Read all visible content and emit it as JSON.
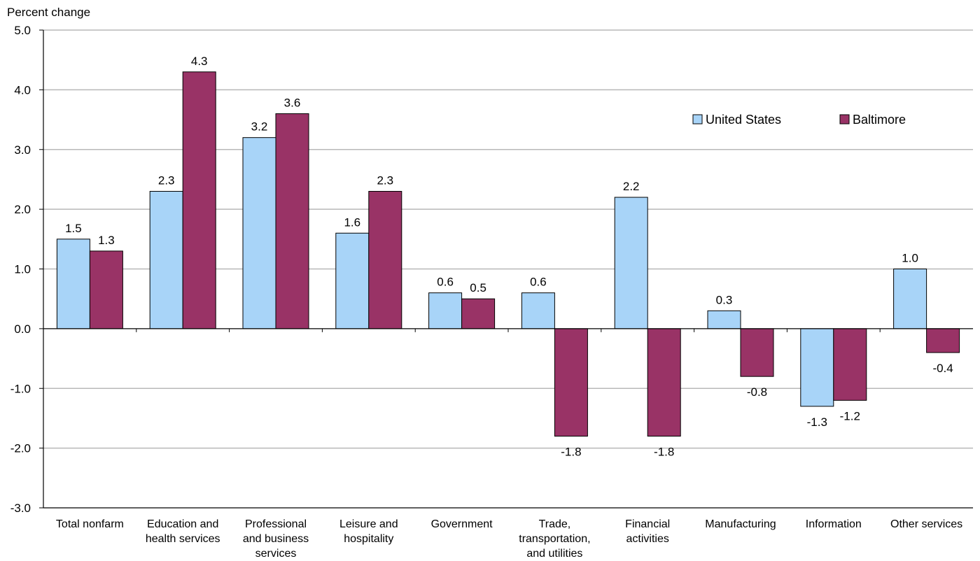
{
  "chart_data": {
    "type": "bar",
    "ylabel": "Percent change",
    "ylim": [
      -3.0,
      5.0
    ],
    "yticks": [
      "5.0",
      "4.0",
      "3.0",
      "2.0",
      "1.0",
      "0.0",
      "-1.0",
      "-2.0",
      "-3.0"
    ],
    "grid": true,
    "legend_position": "top-right",
    "categories": [
      [
        "Total nonfarm"
      ],
      [
        "Education and",
        "health services"
      ],
      [
        "Professional",
        "and business",
        "services"
      ],
      [
        "Leisure and",
        "hospitality"
      ],
      [
        "Government"
      ],
      [
        "Trade,",
        "transportation,",
        "and utilities"
      ],
      [
        "Financial",
        "activities"
      ],
      [
        "Manufacturing"
      ],
      [
        "Information"
      ],
      [
        "Other services"
      ]
    ],
    "series": [
      {
        "name": "United States",
        "color": "#a8d4f8",
        "values": [
          1.5,
          2.3,
          3.2,
          1.6,
          0.6,
          0.6,
          2.2,
          0.3,
          -1.3,
          1.0
        ],
        "labels": [
          "1.5",
          "2.3",
          "3.2",
          "1.6",
          "0.6",
          "0.6",
          "2.2",
          "0.3",
          "-1.3",
          "1.0"
        ]
      },
      {
        "name": "Baltimore",
        "color": "#993366",
        "values": [
          1.3,
          4.3,
          3.6,
          2.3,
          0.5,
          -1.8,
          -1.8,
          -0.8,
          -1.2,
          -0.4
        ],
        "labels": [
          "1.3",
          "4.3",
          "3.6",
          "2.3",
          "0.5",
          "-1.8",
          "-1.8",
          "-0.8",
          "-1.2",
          "-0.4"
        ]
      }
    ]
  }
}
